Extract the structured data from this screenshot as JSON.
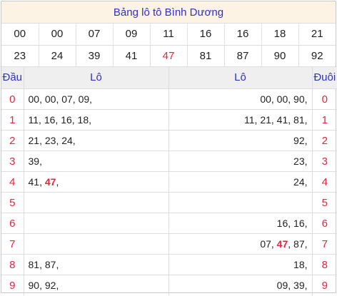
{
  "title": "Bảng lô tô Bình Dương",
  "loto": {
    "row1": [
      "00",
      "00",
      "07",
      "09",
      "11",
      "16",
      "16",
      "18",
      "21"
    ],
    "row2": [
      "23",
      "24",
      "39",
      "41",
      "47",
      "81",
      "87",
      "90",
      "92"
    ],
    "highlight": "47"
  },
  "headers": {
    "dau": "Đầu",
    "lo_left": "Lô",
    "lo_right": "Lô",
    "duoi": "Đuôi"
  },
  "rows": [
    {
      "dau": "0",
      "left": [
        "00",
        "00",
        "07",
        "09"
      ],
      "right": [
        "00",
        "00",
        "90"
      ],
      "duoi": "0"
    },
    {
      "dau": "1",
      "left": [
        "11",
        "16",
        "16",
        "18"
      ],
      "right": [
        "11",
        "21",
        "41",
        "81"
      ],
      "duoi": "1"
    },
    {
      "dau": "2",
      "left": [
        "21",
        "23",
        "24"
      ],
      "right": [
        "92"
      ],
      "duoi": "2"
    },
    {
      "dau": "3",
      "left": [
        "39"
      ],
      "right": [
        "23"
      ],
      "duoi": "3"
    },
    {
      "dau": "4",
      "left": [
        "41",
        "47"
      ],
      "right": [
        "24"
      ],
      "duoi": "4"
    },
    {
      "dau": "5",
      "left": [],
      "right": [],
      "duoi": "5"
    },
    {
      "dau": "6",
      "left": [],
      "right": [
        "16",
        "16"
      ],
      "duoi": "6"
    },
    {
      "dau": "7",
      "left": [],
      "right": [
        "07",
        "47",
        "87"
      ],
      "duoi": "7"
    },
    {
      "dau": "8",
      "left": [
        "81",
        "87"
      ],
      "right": [
        "18"
      ],
      "duoi": "8"
    },
    {
      "dau": "9",
      "left": [
        "90",
        "92"
      ],
      "right": [
        "09",
        "39"
      ],
      "duoi": "9"
    }
  ],
  "colors": {
    "title": "#2f31c7",
    "highlight": "#e8243c",
    "title_bg": "#fdf3e4",
    "header_bg": "#efefef"
  }
}
